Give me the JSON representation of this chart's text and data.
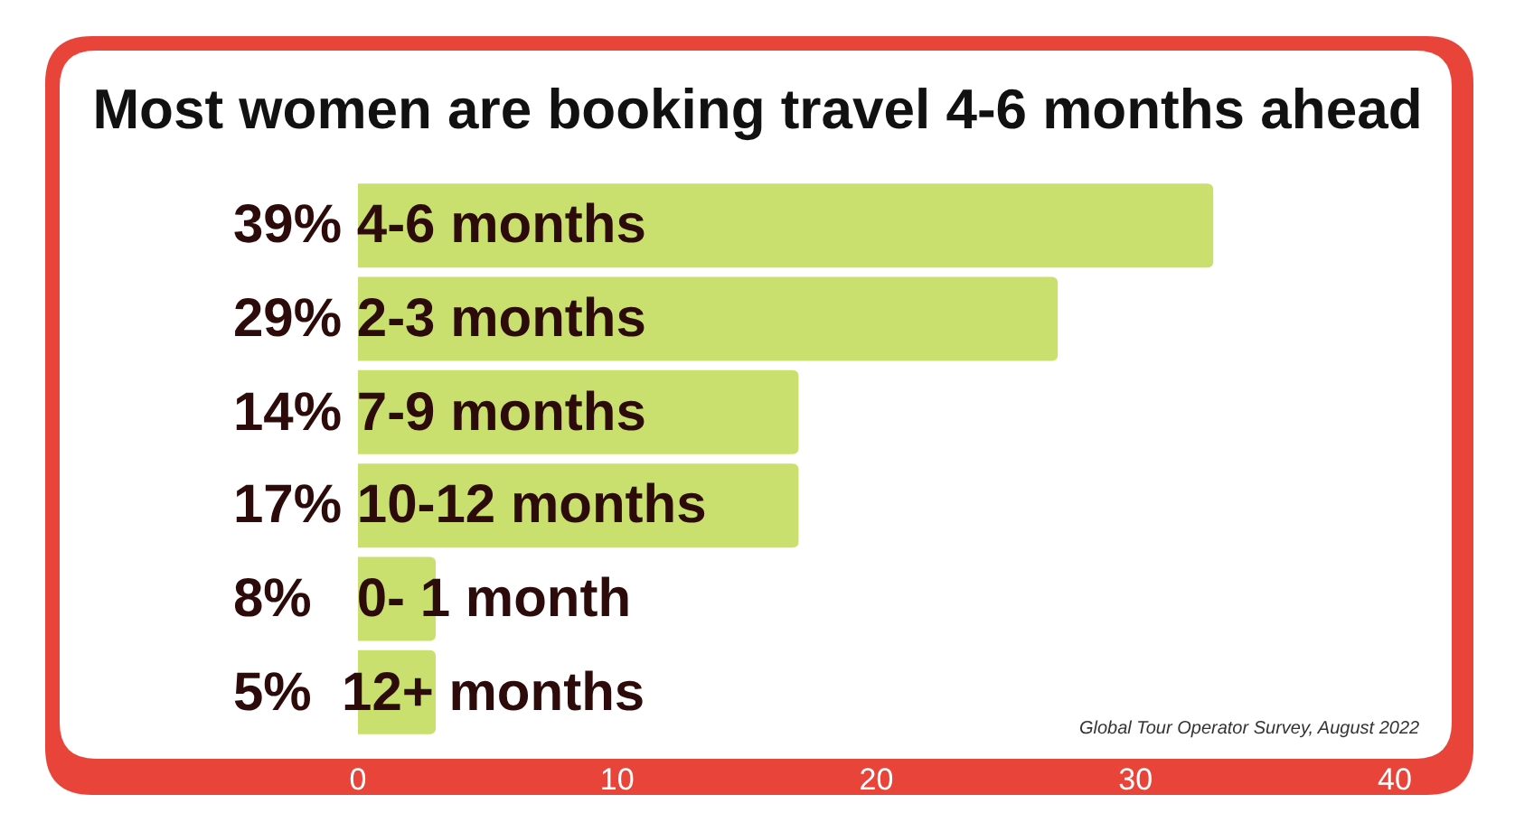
{
  "chart_data": {
    "type": "bar",
    "orientation": "horizontal",
    "title": "Most women are booking travel 4-6 months ahead",
    "categories": [
      "39% 4-6 months",
      "29% 2-3 months",
      "14% 7-9 months",
      "17% 10-12 months",
      "8%   0- 1 month",
      "5%  12+ months"
    ],
    "values": [
      33,
      27,
      17,
      17,
      3,
      3
    ],
    "color": "#c9e06f",
    "xlim": [
      0,
      42.2
    ],
    "xticks": [
      0,
      10,
      20,
      30,
      40
    ],
    "annotations": [
      "Global Tour Operator Survey, August 2022"
    ]
  }
}
